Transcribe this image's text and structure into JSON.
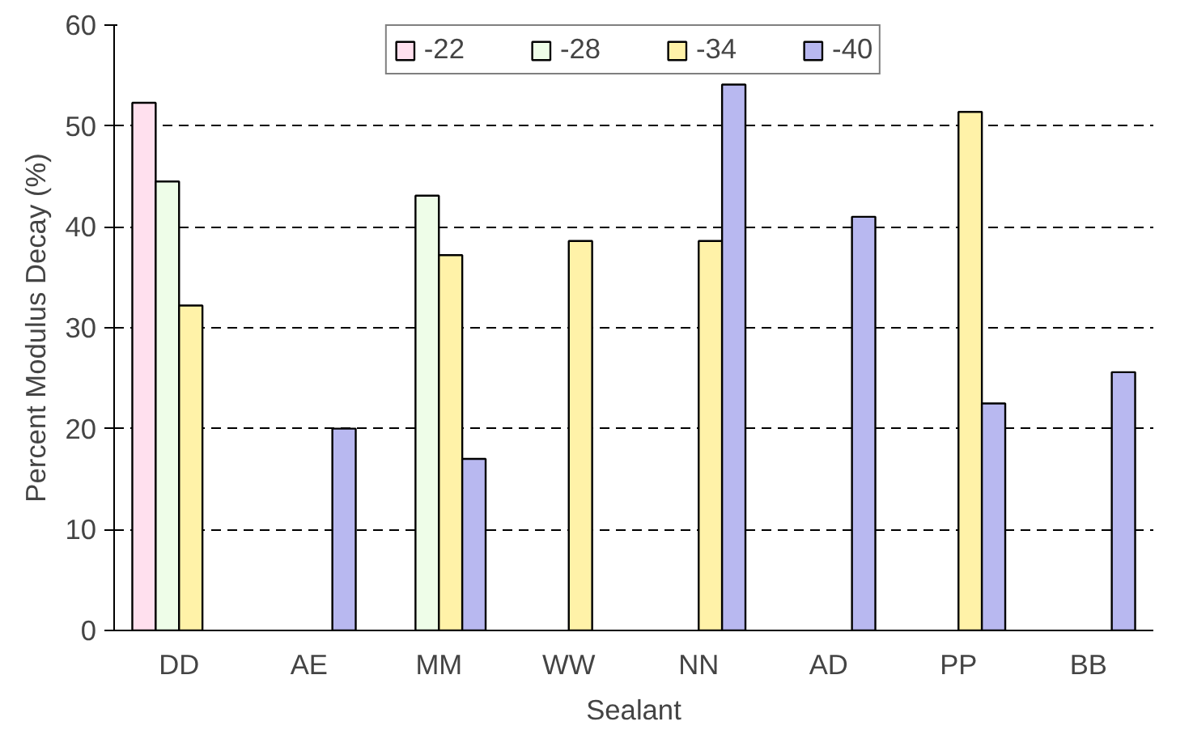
{
  "chart_data": {
    "type": "bar",
    "xlabel": "Sealant",
    "ylabel": "Percent Modulus Decay (%)",
    "categories": [
      "DD",
      "AE",
      "MM",
      "WW",
      "NN",
      "AD",
      "PP",
      "BB"
    ],
    "series": [
      {
        "name": "-22",
        "color": "#ffe0ee",
        "values": [
          52.3,
          null,
          null,
          null,
          null,
          null,
          null,
          null
        ]
      },
      {
        "name": "-28",
        "color": "#eefde8",
        "values": [
          44.5,
          null,
          43.1,
          null,
          null,
          null,
          null,
          null
        ]
      },
      {
        "name": "-34",
        "color": "#fff2a8",
        "values": [
          32.2,
          null,
          37.2,
          38.6,
          38.6,
          null,
          51.4,
          null
        ]
      },
      {
        "name": "-40",
        "color": "#b8b8f0",
        "values": [
          null,
          20,
          17.0,
          null,
          54.1,
          41.0,
          22.5,
          25.6
        ]
      }
    ],
    "ylim": [
      0,
      60
    ],
    "yticks": [
      0,
      10,
      20,
      30,
      40,
      50,
      60
    ],
    "grid": "y",
    "legend": "top"
  }
}
